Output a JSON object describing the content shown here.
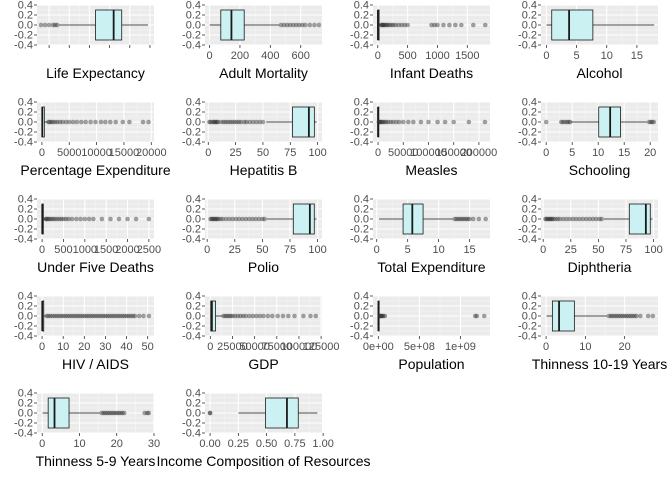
{
  "colors": {
    "panel_background": "#ebebeb",
    "grid_major": "#ffffff",
    "grid_minor": "#f5f5f5",
    "box_fill": "#ccf1f2",
    "box_line": "#1a1a1a",
    "outlier": "#333333"
  },
  "chart_data": [
    {
      "type": "boxplot",
      "xlabel": "Life Expectancy",
      "xticks": [
        40,
        50,
        60,
        70,
        80,
        90
      ],
      "xlim": [
        34,
        92
      ],
      "yticks": [
        "0.4",
        "0.2",
        "0.0",
        "-0.2",
        "-0.4"
      ],
      "ylim": [
        -0.4,
        0.4
      ],
      "box": {
        "whisker_low": 45,
        "q1": 63,
        "median": 72,
        "q3": 76,
        "whisker_high": 89
      },
      "outliers": [
        36,
        38,
        40,
        42,
        43,
        44
      ]
    },
    {
      "type": "boxplot",
      "xlabel": "Adult Mortality",
      "xticks": [
        0,
        200,
        400,
        600
      ],
      "xticklabels": [
        "0",
        "200",
        "400",
        "600"
      ],
      "xlim": [
        -30,
        740
      ],
      "yticks": [
        "0.4",
        "0.2",
        "0.0",
        "-0.2",
        "-0.4"
      ],
      "ylim": [
        -0.4,
        0.4
      ],
      "box": {
        "whisker_low": 1,
        "q1": 74,
        "median": 144,
        "q3": 228,
        "whisker_high": 459
      },
      "outliers": [
        470,
        490,
        510,
        530,
        550,
        570,
        590,
        610,
        630,
        660,
        690,
        720
      ]
    },
    {
      "type": "boxplot",
      "xlabel": "Infant Deaths",
      "xticks": [
        0,
        500,
        1000,
        1500
      ],
      "xticklabels": [
        "0",
        "500",
        "1000",
        "1500"
      ],
      "xlim": [
        -80,
        1880
      ],
      "yticks": [
        "0.4",
        "0.2",
        "0.0",
        "-0.2",
        "-0.4"
      ],
      "ylim": [
        -0.4,
        0.4
      ],
      "box": {
        "whisker_low": 0,
        "q1": 0,
        "median": 3,
        "q3": 22,
        "whisker_high": 55
      },
      "outliers": [
        60,
        70,
        80,
        95,
        110,
        130,
        150,
        170,
        200,
        230,
        260,
        300,
        350,
        400,
        450,
        500,
        900,
        950,
        1000,
        1100,
        1200,
        1300,
        1400,
        1600,
        1800
      ]
    },
    {
      "type": "boxplot",
      "xlabel": "Alcohol",
      "xticks": [
        0,
        5,
        10,
        15
      ],
      "xticklabels": [
        "0",
        "5",
        "10",
        "15"
      ],
      "xlim": [
        -0.9,
        18.5
      ],
      "yticks": [
        "0.4",
        "0.2",
        "0.0",
        "-0.2",
        "-0.4"
      ],
      "ylim": [
        -0.4,
        0.4
      ],
      "box": {
        "whisker_low": 0.01,
        "q1": 0.88,
        "median": 3.76,
        "q3": 7.7,
        "whisker_high": 17.87
      },
      "outliers": []
    },
    {
      "type": "boxplot",
      "xlabel": "Percentage Expenditure",
      "xticks": [
        0,
        5000,
        10000,
        15000,
        20000
      ],
      "xticklabels": [
        "0",
        "5000",
        "10000",
        "15000",
        "20000"
      ],
      "xlim": [
        -900,
        20500
      ],
      "yticks": [
        "0.4",
        "0.2",
        "0.0",
        "-0.2",
        "-0.4"
      ],
      "ylim": [
        -0.4,
        0.4
      ],
      "box": {
        "whisker_low": 0,
        "q1": 5,
        "median": 65,
        "q3": 440,
        "whisker_high": 1090
      },
      "outliers": [
        1200,
        1400,
        1700,
        2000,
        2400,
        2800,
        3300,
        3800,
        4400,
        5000,
        5700,
        6400,
        7200,
        8000,
        8900,
        9800,
        10800,
        11600,
        12500,
        13500,
        14800,
        16000,
        18500,
        19500
      ]
    },
    {
      "type": "boxplot",
      "xlabel": "Hepatitis B",
      "xticks": [
        0,
        25,
        50,
        75,
        100
      ],
      "xticklabels": [
        "0",
        "25",
        "50",
        "75",
        "100"
      ],
      "xlim": [
        -3,
        104
      ],
      "yticks": [
        "0.4",
        "0.2",
        "0.0",
        "-0.2",
        "-0.4"
      ],
      "ylim": [
        -0.4,
        0.4
      ],
      "box": {
        "whisker_low": 53,
        "q1": 77,
        "median": 92,
        "q3": 97,
        "whisker_high": 99
      },
      "outliers": [
        1,
        2,
        4,
        5,
        6,
        7,
        8,
        9,
        12,
        14,
        16,
        18,
        20,
        22,
        24,
        26,
        28,
        30,
        33,
        35,
        38,
        41,
        44,
        47,
        50
      ]
    },
    {
      "type": "boxplot",
      "xlabel": "Measles",
      "xticks": [
        0,
        50000,
        100000,
        150000,
        200000
      ],
      "xticklabels": [
        "0",
        "50000",
        "100000",
        "150000",
        "200000"
      ],
      "xlim": [
        -10000,
        222000
      ],
      "yticks": [
        "0.4",
        "0.2",
        "0.0",
        "-0.2",
        "-0.4"
      ],
      "ylim": [
        -0.4,
        0.4
      ],
      "box": {
        "whisker_low": 0,
        "q1": 0,
        "median": 17,
        "q3": 360,
        "whisker_high": 900
      },
      "outliers": [
        1500,
        2500,
        4000,
        6000,
        8000,
        10000,
        13000,
        16000,
        20000,
        25000,
        30000,
        36000,
        42000,
        50000,
        60000,
        70000,
        85000,
        100000,
        118000,
        133000,
        150000,
        180000,
        212000
      ]
    },
    {
      "type": "boxplot",
      "xlabel": "Schooling",
      "xticks": [
        0,
        5,
        10,
        15,
        20
      ],
      "xticklabels": [
        "0",
        "5",
        "10",
        "15",
        "20"
      ],
      "xlim": [
        -1,
        21.5
      ],
      "yticks": [
        "0.4",
        "0.2",
        "0.0",
        "-0.2",
        "-0.4"
      ],
      "ylim": [
        -0.4,
        0.4
      ],
      "box": {
        "whisker_low": 4.8,
        "q1": 10.1,
        "median": 12.3,
        "q3": 14.3,
        "whisker_high": 19.4
      },
      "outliers": [
        0,
        2.9,
        3.2,
        3.6,
        4.0,
        4.3,
        4.6,
        19.8,
        20.1,
        20.4,
        20.7
      ]
    },
    {
      "type": "boxplot",
      "xlabel": "Under Five Deaths",
      "xticks": [
        0,
        500,
        1000,
        1500,
        2000,
        2500
      ],
      "xticklabels": [
        "0",
        "500",
        "1000",
        "1500",
        "2000",
        "2500"
      ],
      "xlim": [
        -120,
        2620
      ],
      "yticks": [
        "0.4",
        "0.2",
        "0.0",
        "-0.2",
        "-0.4"
      ],
      "ylim": [
        -0.4,
        0.4
      ],
      "box": {
        "whisker_low": 0,
        "q1": 0,
        "median": 4,
        "q3": 28,
        "whisker_high": 70
      },
      "outliers": [
        80,
        100,
        120,
        150,
        180,
        220,
        260,
        300,
        350,
        400,
        450,
        500,
        560,
        620,
        700,
        800,
        900,
        1000,
        1100,
        1200,
        1400,
        1600,
        1800,
        2000,
        2200,
        2500
      ]
    },
    {
      "type": "boxplot",
      "xlabel": "Polio",
      "xticks": [
        0,
        25,
        50,
        75,
        100
      ],
      "xticklabels": [
        "0",
        "25",
        "50",
        "75",
        "100"
      ],
      "xlim": [
        -2,
        104
      ],
      "yticks": [
        "0.4",
        "0.2",
        "0.0",
        "-0.2",
        "-0.4"
      ],
      "ylim": [
        -0.4,
        0.4
      ],
      "box": {
        "whisker_low": 54,
        "q1": 78,
        "median": 93,
        "q3": 97,
        "whisker_high": 99
      },
      "outliers": [
        3,
        4,
        5,
        6,
        7,
        8,
        9,
        10,
        12,
        14,
        17,
        20,
        23,
        26,
        29,
        32,
        35,
        38,
        41,
        44,
        47,
        50,
        52
      ]
    },
    {
      "type": "boxplot",
      "xlabel": "Total Expenditure",
      "xticks": [
        0,
        5,
        10,
        15
      ],
      "xticklabels": [
        "0",
        "5",
        "10",
        "15"
      ],
      "xlim": [
        -0.6,
        18.3
      ],
      "yticks": [
        "0.4",
        "0.2",
        "0.0",
        "-0.2",
        "-0.4"
      ],
      "ylim": [
        -0.4,
        0.4
      ],
      "box": {
        "whisker_low": 0.37,
        "q1": 4.26,
        "median": 5.75,
        "q3": 7.49,
        "whisker_high": 12.3
      },
      "outliers": [
        12.6,
        12.9,
        13.2,
        13.5,
        13.8,
        14.1,
        14.4,
        14.7,
        15.0,
        15.6,
        16.5,
        17.6
      ]
    },
    {
      "type": "boxplot",
      "xlabel": "Diphtheria",
      "xticks": [
        0,
        25,
        50,
        75,
        100
      ],
      "xticklabels": [
        "0",
        "25",
        "50",
        "75",
        "100"
      ],
      "xlim": [
        -2,
        104
      ],
      "yticks": [
        "0.4",
        "0.2",
        "0.0",
        "-0.2",
        "-0.4"
      ],
      "ylim": [
        -0.4,
        0.4
      ],
      "box": {
        "whisker_low": 55,
        "q1": 78,
        "median": 93,
        "q3": 97,
        "whisker_high": 99
      },
      "outliers": [
        2,
        3,
        4,
        5,
        6,
        7,
        8,
        9,
        11,
        13,
        15,
        18,
        21,
        24,
        27,
        30,
        33,
        36,
        39,
        42,
        45,
        48,
        51,
        53
      ]
    },
    {
      "type": "boxplot",
      "xlabel": "HIV / AIDS",
      "xticks": [
        0,
        10,
        20,
        30,
        40,
        50
      ],
      "xticklabels": [
        "0",
        "10",
        "20",
        "30",
        "40",
        "50"
      ],
      "xlim": [
        -2.4,
        53
      ],
      "yticks": [
        "0.4",
        "0.2",
        "0.0",
        "-0.2",
        "-0.4"
      ],
      "ylim": [
        -0.4,
        0.4
      ],
      "box": {
        "whisker_low": 0.1,
        "q1": 0.1,
        "median": 0.1,
        "q3": 0.8,
        "whisker_high": 1.8
      },
      "outliers": [
        2.2,
        3,
        4,
        5,
        6,
        7,
        8,
        9,
        10,
        11,
        12,
        13,
        14,
        15,
        16,
        17,
        18,
        19,
        20,
        21,
        22,
        23,
        24,
        25,
        26,
        27,
        28,
        29,
        30,
        31,
        32,
        33,
        34,
        35,
        36,
        37,
        38,
        39,
        40,
        41,
        42,
        43,
        44,
        46,
        48,
        50.6
      ]
    },
    {
      "type": "boxplot",
      "xlabel": "GDP",
      "xticks": [
        0,
        25000,
        50000,
        75000,
        100000,
        125000
      ],
      "xticklabels": [
        "0",
        "25000",
        "50000",
        "75000",
        "100000",
        "125000"
      ],
      "xlim": [
        -6000,
        126000
      ],
      "yticks": [
        "0.4",
        "0.2",
        "0.0",
        "-0.2",
        "-0.4"
      ],
      "ylim": [
        -0.4,
        0.4
      ],
      "box": {
        "whisker_low": 1.7,
        "q1": 460,
        "median": 1770,
        "q3": 5900,
        "whisker_high": 14000
      },
      "outliers": [
        15000,
        17000,
        19000,
        21000,
        23000,
        25000,
        28000,
        31000,
        34000,
        37000,
        40000,
        44000,
        48000,
        52000,
        56000,
        60000,
        65000,
        70000,
        76000,
        82000,
        88000,
        95000,
        105000,
        113000,
        119000
      ]
    },
    {
      "type": "boxplot",
      "xlabel": "Population",
      "xticks": [
        0,
        500000000,
        1000000000
      ],
      "xticklabels": [
        "0e+00",
        "5e+08",
        "1e+09"
      ],
      "xlim": [
        -65000000,
        1360000000
      ],
      "yticks": [
        "0.4",
        "0.2",
        "0.0",
        "-0.2",
        "-0.4"
      ],
      "ylim": [
        -0.4,
        0.4
      ],
      "box": {
        "whisker_low": 34,
        "q1": 195000,
        "median": 1390000,
        "q3": 7400000,
        "whisker_high": 18000000
      },
      "outliers": [
        20000000,
        25000000,
        30000000,
        40000000,
        50000000,
        60000000,
        80000000,
        1180000000,
        1200000000,
        1290000000
      ]
    },
    {
      "type": "boxplot",
      "xlabel": "Thinness 10-19 Years",
      "xticks": [
        0,
        10,
        20
      ],
      "xticklabels": [
        "0",
        "10",
        "20"
      ],
      "xlim": [
        -1.3,
        28.5
      ],
      "yticks": [
        "0.4",
        "0.2",
        "0.0",
        "-0.2",
        "-0.4"
      ],
      "ylim": [
        -0.4,
        0.4
      ],
      "box": {
        "whisker_low": 0.1,
        "q1": 1.6,
        "median": 3.3,
        "q3": 7.2,
        "whisker_high": 15.5
      },
      "outliers": [
        16,
        16.5,
        17,
        17.5,
        18,
        18.5,
        19,
        19.5,
        20,
        20.5,
        21,
        21.5,
        22,
        22.5,
        23,
        24,
        26,
        27.2
      ]
    },
    {
      "type": "boxplot",
      "xlabel": "Thinness 5-9 Years",
      "xticks": [
        0,
        10,
        20,
        30
      ],
      "xticklabels": [
        "0",
        "10",
        "20",
        "30"
      ],
      "xlim": [
        -1.4,
        30
      ],
      "yticks": [
        "0.4",
        "0.2",
        "0.0",
        "-0.2",
        "-0.4"
      ],
      "ylim": [
        -0.4,
        0.4
      ],
      "box": {
        "whisker_low": 0.1,
        "q1": 1.6,
        "median": 3.3,
        "q3": 7.2,
        "whisker_high": 15.5
      },
      "outliers": [
        16,
        16.5,
        17,
        17.5,
        18,
        18.5,
        19,
        19.5,
        20,
        20.5,
        21,
        21.5,
        22,
        27.5,
        28.2,
        28.6
      ]
    },
    {
      "type": "boxplot",
      "xlabel": "Income Composition of Resources",
      "xticks": [
        0,
        0.25,
        0.5,
        0.75,
        1.0
      ],
      "xticklabels": [
        "0.00",
        "0.25",
        "0.50",
        "0.75",
        "1.00"
      ],
      "xlim": [
        -0.045,
        0.99
      ],
      "yticks": [
        "0.4",
        "0.2",
        "0.0",
        "-0.2",
        "-0.4"
      ],
      "ylim": [
        -0.4,
        0.4
      ],
      "box": {
        "whisker_low": 0.25,
        "q1": 0.49,
        "median": 0.68,
        "q3": 0.78,
        "whisker_high": 0.95
      },
      "outliers": [
        0,
        0
      ]
    }
  ]
}
